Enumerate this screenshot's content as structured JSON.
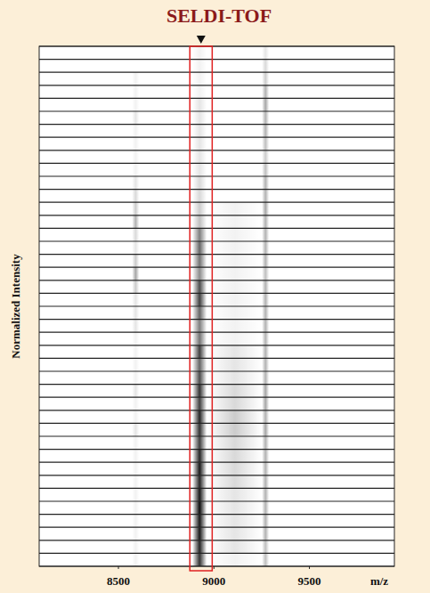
{
  "chart_data": {
    "type": "heatmap",
    "title": "SELDI-TOF",
    "y_label": "Normalized Intensity",
    "x_label": "m/z",
    "x": [
      8590,
      8925,
      9110,
      9270
    ],
    "xlim": [
      8085,
      9945
    ],
    "xticks": [
      8500,
      9000,
      9500
    ],
    "tick_labels": "x",
    "color": "#000000",
    "highlight": [
      8874,
      8991
    ],
    "cells": [
      [
        0,
        0.05,
        0,
        0.1
      ],
      [
        0,
        0.05,
        0,
        0.15
      ],
      [
        0.05,
        0.05,
        0,
        0.2
      ],
      [
        0.05,
        0.05,
        0,
        0.3
      ],
      [
        0.05,
        0.1,
        0,
        0.35
      ],
      [
        0.1,
        0.1,
        0,
        0.3
      ],
      [
        0.05,
        0.1,
        0,
        0.3
      ],
      [
        0.05,
        0.1,
        0,
        0.25
      ],
      [
        0.05,
        0.1,
        0,
        0.2
      ],
      [
        0.05,
        0.1,
        0,
        0.25
      ],
      [
        0.1,
        0.15,
        0,
        0.3
      ],
      [
        0.15,
        0.15,
        0,
        0.3
      ],
      [
        0.2,
        0.2,
        0.05,
        0.35
      ],
      [
        0.3,
        0.25,
        0.05,
        0.3
      ],
      [
        0.15,
        0.5,
        0.05,
        0.3
      ],
      [
        0.1,
        0.6,
        0.05,
        0.3
      ],
      [
        0.2,
        0.55,
        0.05,
        0.3
      ],
      [
        0.35,
        0.45,
        0.05,
        0.25
      ],
      [
        0.2,
        0.7,
        0.05,
        0.3
      ],
      [
        0.1,
        0.75,
        0.05,
        0.3
      ],
      [
        0.1,
        0.6,
        0.05,
        0.3
      ],
      [
        0.1,
        0.5,
        0.05,
        0.3
      ],
      [
        0.05,
        0.55,
        0.05,
        0.3
      ],
      [
        0.05,
        0.75,
        0.1,
        0.3
      ],
      [
        0.05,
        0.6,
        0.1,
        0.3
      ],
      [
        0.05,
        0.7,
        0.1,
        0.3
      ],
      [
        0.1,
        0.8,
        0.15,
        0.35
      ],
      [
        0.05,
        0.75,
        0.15,
        0.35
      ],
      [
        0.05,
        0.85,
        0.2,
        0.3
      ],
      [
        0.1,
        0.8,
        0.2,
        0.35
      ],
      [
        0.05,
        0.75,
        0.15,
        0.3
      ],
      [
        0.05,
        0.85,
        0.15,
        0.3
      ],
      [
        0.05,
        0.9,
        0.15,
        0.3
      ],
      [
        0.05,
        0.85,
        0.15,
        0.3
      ],
      [
        0.05,
        0.9,
        0.1,
        0.3
      ],
      [
        0.05,
        0.95,
        0.1,
        0.3
      ],
      [
        0.05,
        0.9,
        0.1,
        0.3
      ],
      [
        0.05,
        0.9,
        0.1,
        0.3
      ],
      [
        0.05,
        0.85,
        0.1,
        0.25
      ],
      [
        0.05,
        0.8,
        0.05,
        0.25
      ]
    ]
  }
}
